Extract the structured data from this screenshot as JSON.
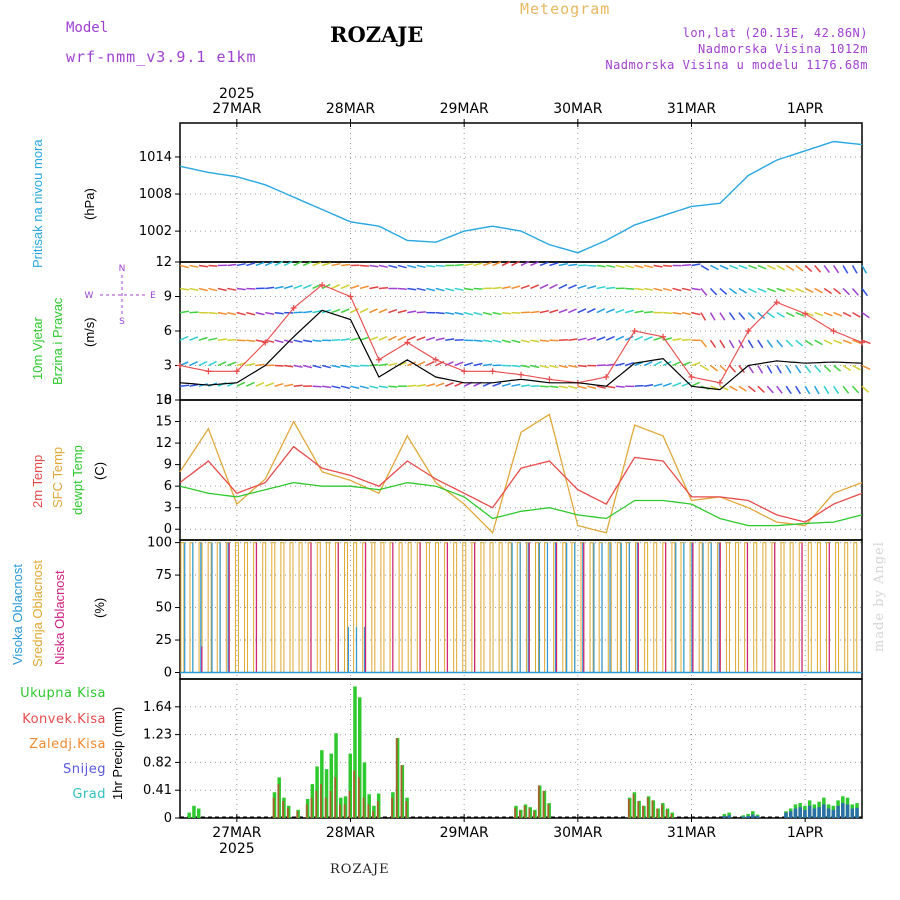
{
  "header": {
    "model_label": "Model",
    "model_name": "wrf-nmm_v3.9.1 e1km",
    "station": "ROZAJE",
    "title": "Meteogram",
    "location": "lon,lat (20.13E, 42.86N)",
    "altitude": "Nadmorska Visina 1012m",
    "model_altitude": "Nadmorska Visina u modelu 1176.68m"
  },
  "footer": {
    "station": "ROZAJE"
  },
  "watermark": "made by Angel",
  "x_axis": {
    "year": "2025",
    "ticks": [
      "27MAR",
      "28MAR",
      "29MAR",
      "30MAR",
      "31MAR",
      "1APR"
    ],
    "tick_hours": [
      12,
      36,
      60,
      84,
      108,
      132
    ]
  },
  "colors": {
    "pressure": "#29a8e0",
    "wind_speed": "#000000",
    "gust": "#e84a4a",
    "temp_2m": "#e84a4a",
    "temp_sfc": "#e0a83a",
    "dewpoint": "#2ec92e",
    "cloud_high": "#2a9ad8",
    "cloud_mid": "#e0a830",
    "cloud_low": "#d02080",
    "precip_total": "#2ec92e",
    "precip_conv": "#e84a4a",
    "precip_frozen": "#f08a30",
    "precip_snow": "#5858e0",
    "precip_graupel": "#30c0c0",
    "wind_dir": "#a040d0"
  },
  "chart_data": [
    {
      "panel": "pressure",
      "type": "line",
      "ylabels": [
        {
          "text": "Pritisak na nivou mora",
          "color": "#29a8e0"
        },
        {
          "text": "(hPa)",
          "color": "#000000"
        }
      ],
      "ylim": [
        997,
        1019.5
      ],
      "yticks": [
        1002,
        1008,
        1014
      ],
      "grid": true,
      "x": [
        0,
        6,
        12,
        18,
        24,
        30,
        36,
        42,
        48,
        54,
        60,
        66,
        72,
        78,
        84,
        90,
        96,
        102,
        108,
        114,
        120,
        126,
        132,
        138,
        144
      ],
      "series": [
        {
          "values": [
            1012.5,
            1011.5,
            1010.8,
            1009.5,
            1007.5,
            1005.5,
            1003.5,
            1002.8,
            1000.5,
            1000.2,
            1002.0,
            1002.8,
            1002.0,
            999.8,
            998.5,
            1000.5,
            1003.0,
            1004.5,
            1006.0,
            1006.5,
            1011.0,
            1013.5,
            1015.0,
            1016.5,
            1016.0
          ]
        }
      ]
    },
    {
      "panel": "wind",
      "type": "line",
      "ylabels": [
        {
          "text": "10m Vjetar",
          "color": "#2ec92e"
        },
        {
          "text": "Brzina i Pravac",
          "color": "#2ec92e"
        },
        {
          "text": "(m/s)",
          "color": "#000000"
        }
      ],
      "direction_legend": [
        "N",
        "E",
        "S",
        "W"
      ],
      "ylim": [
        0,
        12
      ],
      "yticks": [
        0,
        3,
        6,
        9,
        12
      ],
      "grid": true,
      "x": [
        0,
        6,
        12,
        18,
        24,
        30,
        36,
        42,
        48,
        54,
        60,
        66,
        72,
        78,
        84,
        90,
        96,
        102,
        108,
        114,
        120,
        126,
        132,
        138,
        144
      ],
      "series": [
        {
          "name": "speed",
          "values": [
            1.5,
            1.3,
            1.5,
            3.0,
            5.5,
            7.8,
            7.0,
            2.0,
            3.5,
            2.0,
            1.5,
            1.5,
            1.8,
            1.5,
            1.5,
            1.2,
            3.2,
            3.6,
            1.2,
            0.9,
            3.0,
            3.4,
            3.2,
            3.3,
            3.2
          ]
        },
        {
          "name": "gust",
          "values": [
            3.0,
            2.5,
            2.5,
            5.0,
            8.0,
            10.0,
            9.0,
            3.5,
            5.0,
            3.5,
            2.5,
            2.5,
            2.2,
            1.8,
            1.5,
            2.0,
            6.0,
            5.5,
            2.0,
            1.5,
            6.0,
            8.5,
            7.5,
            6.0,
            5.0
          ]
        }
      ]
    },
    {
      "panel": "temperature",
      "type": "line",
      "ylabels": [
        {
          "text": "2m Temp",
          "color": "#e84a4a"
        },
        {
          "text": "SFC Temp",
          "color": "#e0a83a"
        },
        {
          "text": "dewpt Temp",
          "color": "#2ec92e"
        },
        {
          "text": "(C)",
          "color": "#000000"
        }
      ],
      "ylim": [
        -1.5,
        18
      ],
      "yticks": [
        0,
        3,
        6,
        9,
        12,
        15,
        18
      ],
      "grid": true,
      "x": [
        0,
        6,
        12,
        18,
        24,
        30,
        36,
        42,
        48,
        54,
        60,
        66,
        72,
        78,
        84,
        90,
        96,
        102,
        108,
        114,
        120,
        126,
        132,
        138,
        144
      ],
      "series": [
        {
          "name": "2m",
          "values": [
            6.5,
            9.5,
            5.0,
            6.5,
            11.5,
            8.5,
            7.5,
            6.0,
            9.5,
            7.0,
            5.0,
            3.0,
            8.5,
            9.5,
            5.5,
            3.5,
            10.0,
            9.5,
            4.5,
            4.5,
            4.0,
            2.0,
            1.0,
            3.5,
            5.0
          ]
        },
        {
          "name": "sfc",
          "values": [
            8.0,
            14.0,
            3.5,
            7.0,
            15.0,
            8.0,
            6.8,
            5.0,
            13.0,
            6.5,
            3.5,
            -0.5,
            13.5,
            16.0,
            0.5,
            -0.5,
            14.5,
            13.0,
            4.0,
            4.5,
            3.0,
            1.0,
            0.5,
            5.0,
            6.5
          ]
        },
        {
          "name": "dewpt",
          "values": [
            6.0,
            5.0,
            4.5,
            5.5,
            6.5,
            6.0,
            6.0,
            5.5,
            6.5,
            6.0,
            4.5,
            1.5,
            2.5,
            3.0,
            2.0,
            1.5,
            4.0,
            4.0,
            3.5,
            1.5,
            0.5,
            0.5,
            0.8,
            1.0,
            2.0
          ]
        }
      ]
    },
    {
      "panel": "clouds",
      "type": "bar",
      "ylabels": [
        {
          "text": "Visoka Oblacnost",
          "color": "#2a9ad8"
        },
        {
          "text": "Srednja Oblacnost",
          "color": "#e0a830"
        },
        {
          "text": "Niska Oblacnost",
          "color": "#d02080"
        },
        {
          "text": "(%)",
          "color": "#000000"
        }
      ],
      "ylim": [
        -5,
        102
      ],
      "yticks": [
        0,
        25,
        50,
        75,
        100
      ],
      "grid": true,
      "series": [
        {
          "name": "mid",
          "values": [
            100,
            100,
            100,
            100,
            100,
            100,
            100,
            100,
            100,
            100,
            100,
            100,
            100,
            100,
            100,
            100,
            100,
            100,
            100,
            100,
            100,
            100,
            100,
            100,
            100
          ]
        },
        {
          "name": "high",
          "values": [
            100,
            100,
            0,
            0,
            0,
            0,
            35,
            0,
            0,
            0,
            0,
            0,
            100,
            100,
            100,
            100,
            100,
            0,
            100,
            100,
            0,
            0,
            0,
            0,
            0
          ]
        },
        {
          "name": "low",
          "values": [
            20,
            100,
            100,
            0,
            100,
            100,
            100,
            100,
            100,
            100,
            100,
            0,
            100,
            100,
            100,
            0,
            100,
            100,
            100,
            100,
            100,
            100,
            100,
            100,
            0
          ]
        }
      ]
    },
    {
      "panel": "precipitation",
      "type": "bar",
      "ylabels": [
        {
          "text": "1hr Precip (mm)",
          "color": "#000000"
        }
      ],
      "legend": [
        {
          "text": "Ukupna Kisa",
          "color": "#2ec92e"
        },
        {
          "text": "Konvek.Kisa",
          "color": "#e84a4a"
        },
        {
          "text": "Zaledj.Kisa",
          "color": "#f08a30"
        },
        {
          "text": "Snijeg",
          "color": "#5858e0"
        },
        {
          "text": "Grad",
          "color": "#30c0c0"
        }
      ],
      "ylim": [
        0,
        2.05
      ],
      "yticks": [
        0,
        0.41,
        0.82,
        1.23,
        1.64
      ],
      "grid": true,
      "x": [
        2,
        3,
        4,
        20,
        21,
        22,
        23,
        25,
        27,
        28,
        29,
        30,
        31,
        32,
        33,
        34,
        35,
        36,
        37,
        38,
        39,
        40,
        41,
        42,
        45,
        46,
        47,
        48,
        71,
        72,
        73,
        74,
        75,
        76,
        77,
        78,
        95,
        96,
        97,
        98,
        99,
        100,
        101,
        102,
        103,
        104,
        115,
        116,
        119,
        120,
        121,
        122,
        128,
        129,
        130,
        131,
        132,
        133,
        134,
        135,
        136,
        137,
        138,
        139,
        140,
        141,
        142,
        143
      ],
      "series": [
        {
          "name": "total",
          "values": [
            0.08,
            0.18,
            0.14,
            0.38,
            0.6,
            0.3,
            0.18,
            0.12,
            0.28,
            0.5,
            0.76,
            1.0,
            0.72,
            0.95,
            1.25,
            0.3,
            0.32,
            0.95,
            1.94,
            1.78,
            0.82,
            0.35,
            0.18,
            0.36,
            0.38,
            1.18,
            0.78,
            0.3,
            0.18,
            0.12,
            0.2,
            0.16,
            0.12,
            0.48,
            0.4,
            0.22,
            0.3,
            0.38,
            0.25,
            0.18,
            0.32,
            0.26,
            0.14,
            0.22,
            0.14,
            0.08,
            0.06,
            0.08,
            0.04,
            0.06,
            0.1,
            0.05,
            0.1,
            0.14,
            0.2,
            0.22,
            0.18,
            0.26,
            0.2,
            0.24,
            0.3,
            0.2,
            0.18,
            0.26,
            0.32,
            0.3,
            0.2,
            0.22
          ]
        },
        {
          "name": "convective",
          "values": [
            0,
            0,
            0,
            0.3,
            0.5,
            0.25,
            0.15,
            0.1,
            0.2,
            0.3,
            0.4,
            0.5,
            0.3,
            0.4,
            0.6,
            0.2,
            0.2,
            0.4,
            0.7,
            0.6,
            0.3,
            0.2,
            0.1,
            0.25,
            0.3,
            1.18,
            0.78,
            0.25,
            0.15,
            0.1,
            0.18,
            0.14,
            0.1,
            0.48,
            0.4,
            0.2,
            0.28,
            0.35,
            0.25,
            0.18,
            0.3,
            0.26,
            0.14,
            0.2,
            0.12,
            0.06,
            0,
            0,
            0,
            0,
            0,
            0,
            0,
            0,
            0,
            0,
            0,
            0,
            0,
            0,
            0,
            0,
            0,
            0,
            0,
            0,
            0,
            0
          ]
        },
        {
          "name": "snow",
          "values": [
            0,
            0,
            0,
            0,
            0,
            0,
            0,
            0,
            0,
            0,
            0,
            0,
            0,
            0,
            0,
            0,
            0,
            0,
            0,
            0,
            0,
            0,
            0,
            0,
            0,
            0,
            0,
            0,
            0,
            0,
            0,
            0,
            0,
            0,
            0,
            0,
            0,
            0,
            0,
            0,
            0,
            0,
            0,
            0,
            0,
            0,
            0.03,
            0.04,
            0.02,
            0.03,
            0.05,
            0.03,
            0.08,
            0.1,
            0.14,
            0.16,
            0.12,
            0.18,
            0.14,
            0.16,
            0.2,
            0.14,
            0.12,
            0.18,
            0.22,
            0.2,
            0.14,
            0.15
          ]
        }
      ]
    }
  ]
}
